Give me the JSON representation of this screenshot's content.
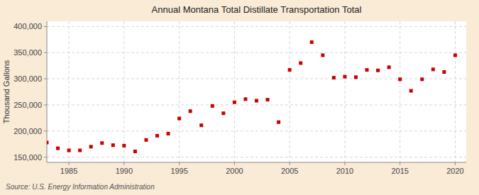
{
  "chart_data": {
    "type": "scatter",
    "title": "Annual Montana Total Distillate Transportation Total",
    "ylabel": "Thousand Gallons",
    "source": "Source: U.S. Energy Information Administration",
    "color": "#cc0000",
    "marker": "square",
    "grid": true,
    "xlim": [
      1983,
      2021
    ],
    "ylim": [
      140000,
      410000
    ],
    "xticks": [
      1985,
      1990,
      1995,
      2000,
      2005,
      2010,
      2015,
      2020
    ],
    "yticks": [
      {
        "value": 150000,
        "label": "150,000"
      },
      {
        "value": 200000,
        "label": "200,000"
      },
      {
        "value": 250000,
        "label": "250,000"
      },
      {
        "value": 300000,
        "label": "300,000"
      },
      {
        "value": 350000,
        "label": "350,000"
      },
      {
        "value": 400000,
        "label": "400,000"
      }
    ],
    "x": [
      1983,
      1984,
      1985,
      1986,
      1987,
      1988,
      1989,
      1990,
      1991,
      1992,
      1993,
      1994,
      1995,
      1996,
      1997,
      1998,
      1999,
      2000,
      2001,
      2002,
      2003,
      2004,
      2005,
      2006,
      2007,
      2008,
      2009,
      2010,
      2011,
      2012,
      2013,
      2014,
      2015,
      2016,
      2017,
      2018,
      2019,
      2020
    ],
    "values": [
      178000,
      167000,
      163000,
      163000,
      170000,
      177000,
      173000,
      172000,
      161000,
      183000,
      191000,
      195000,
      224000,
      238000,
      211000,
      248000,
      234000,
      255000,
      261000,
      258000,
      260000,
      217000,
      317000,
      330000,
      370000,
      345000,
      302000,
      304000,
      303000,
      317000,
      316000,
      322000,
      299000,
      277000,
      299000,
      318000,
      313000,
      345000
    ]
  }
}
